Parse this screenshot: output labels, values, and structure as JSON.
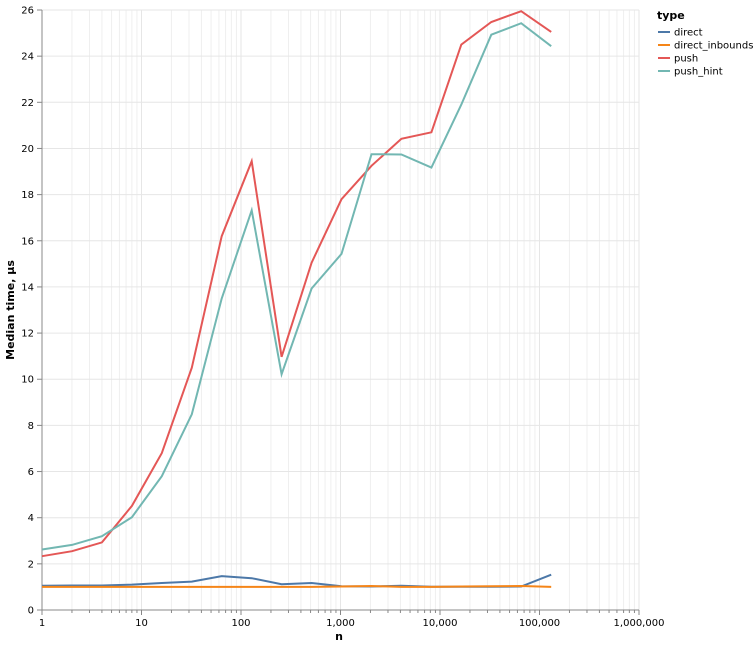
{
  "chart_data": {
    "type": "line",
    "xlabel": "n",
    "ylabel": "Median time, µs",
    "x_scale": "log",
    "xlim": [
      1,
      1000000
    ],
    "ylim": [
      0,
      26
    ],
    "x_ticks": [
      {
        "value": 1,
        "label": "1"
      },
      {
        "value": 10,
        "label": "10"
      },
      {
        "value": 100,
        "label": "100"
      },
      {
        "value": 1000,
        "label": "1,000"
      },
      {
        "value": 10000,
        "label": "10,000"
      },
      {
        "value": 100000,
        "label": "100,000"
      },
      {
        "value": 1000000,
        "label": "1,000,000"
      }
    ],
    "y_ticks": [
      0,
      2,
      4,
      6,
      8,
      10,
      12,
      14,
      16,
      18,
      20,
      22,
      24,
      26
    ],
    "grid": true,
    "legend": {
      "title": "type",
      "position": "right"
    },
    "x": [
      1,
      2,
      4,
      8,
      16,
      32,
      64,
      128,
      256,
      512,
      1024,
      2048,
      4096,
      8192,
      16384,
      32768,
      65536,
      131072
    ],
    "series": [
      {
        "name": "direct",
        "color": "#4c78a8",
        "values": [
          1.05,
          1.06,
          1.06,
          1.1,
          1.17,
          1.23,
          1.47,
          1.38,
          1.12,
          1.17,
          1.03,
          1.02,
          1.05,
          1.01,
          1.01,
          1.01,
          1.02,
          1.53
        ]
      },
      {
        "name": "direct_inbounds",
        "color": "#f58518",
        "values": [
          1.0,
          1.0,
          1.0,
          1.0,
          1.0,
          1.0,
          1.0,
          1.0,
          1.0,
          1.0,
          1.02,
          1.04,
          1.0,
          1.0,
          1.02,
          1.03,
          1.04,
          1.0
        ]
      },
      {
        "name": "push",
        "color": "#e45756",
        "values": [
          2.33,
          2.55,
          2.93,
          4.51,
          6.8,
          10.5,
          16.2,
          19.45,
          10.97,
          15.05,
          17.8,
          19.25,
          20.42,
          20.7,
          24.5,
          25.48,
          25.95,
          25.05
        ]
      },
      {
        "name": "push_hint",
        "color": "#72b7b2",
        "values": [
          2.62,
          2.82,
          3.2,
          4.02,
          5.8,
          8.48,
          13.5,
          17.32,
          10.22,
          13.93,
          15.43,
          19.75,
          19.74,
          19.17,
          21.9,
          24.93,
          25.43,
          24.43
        ]
      }
    ]
  }
}
